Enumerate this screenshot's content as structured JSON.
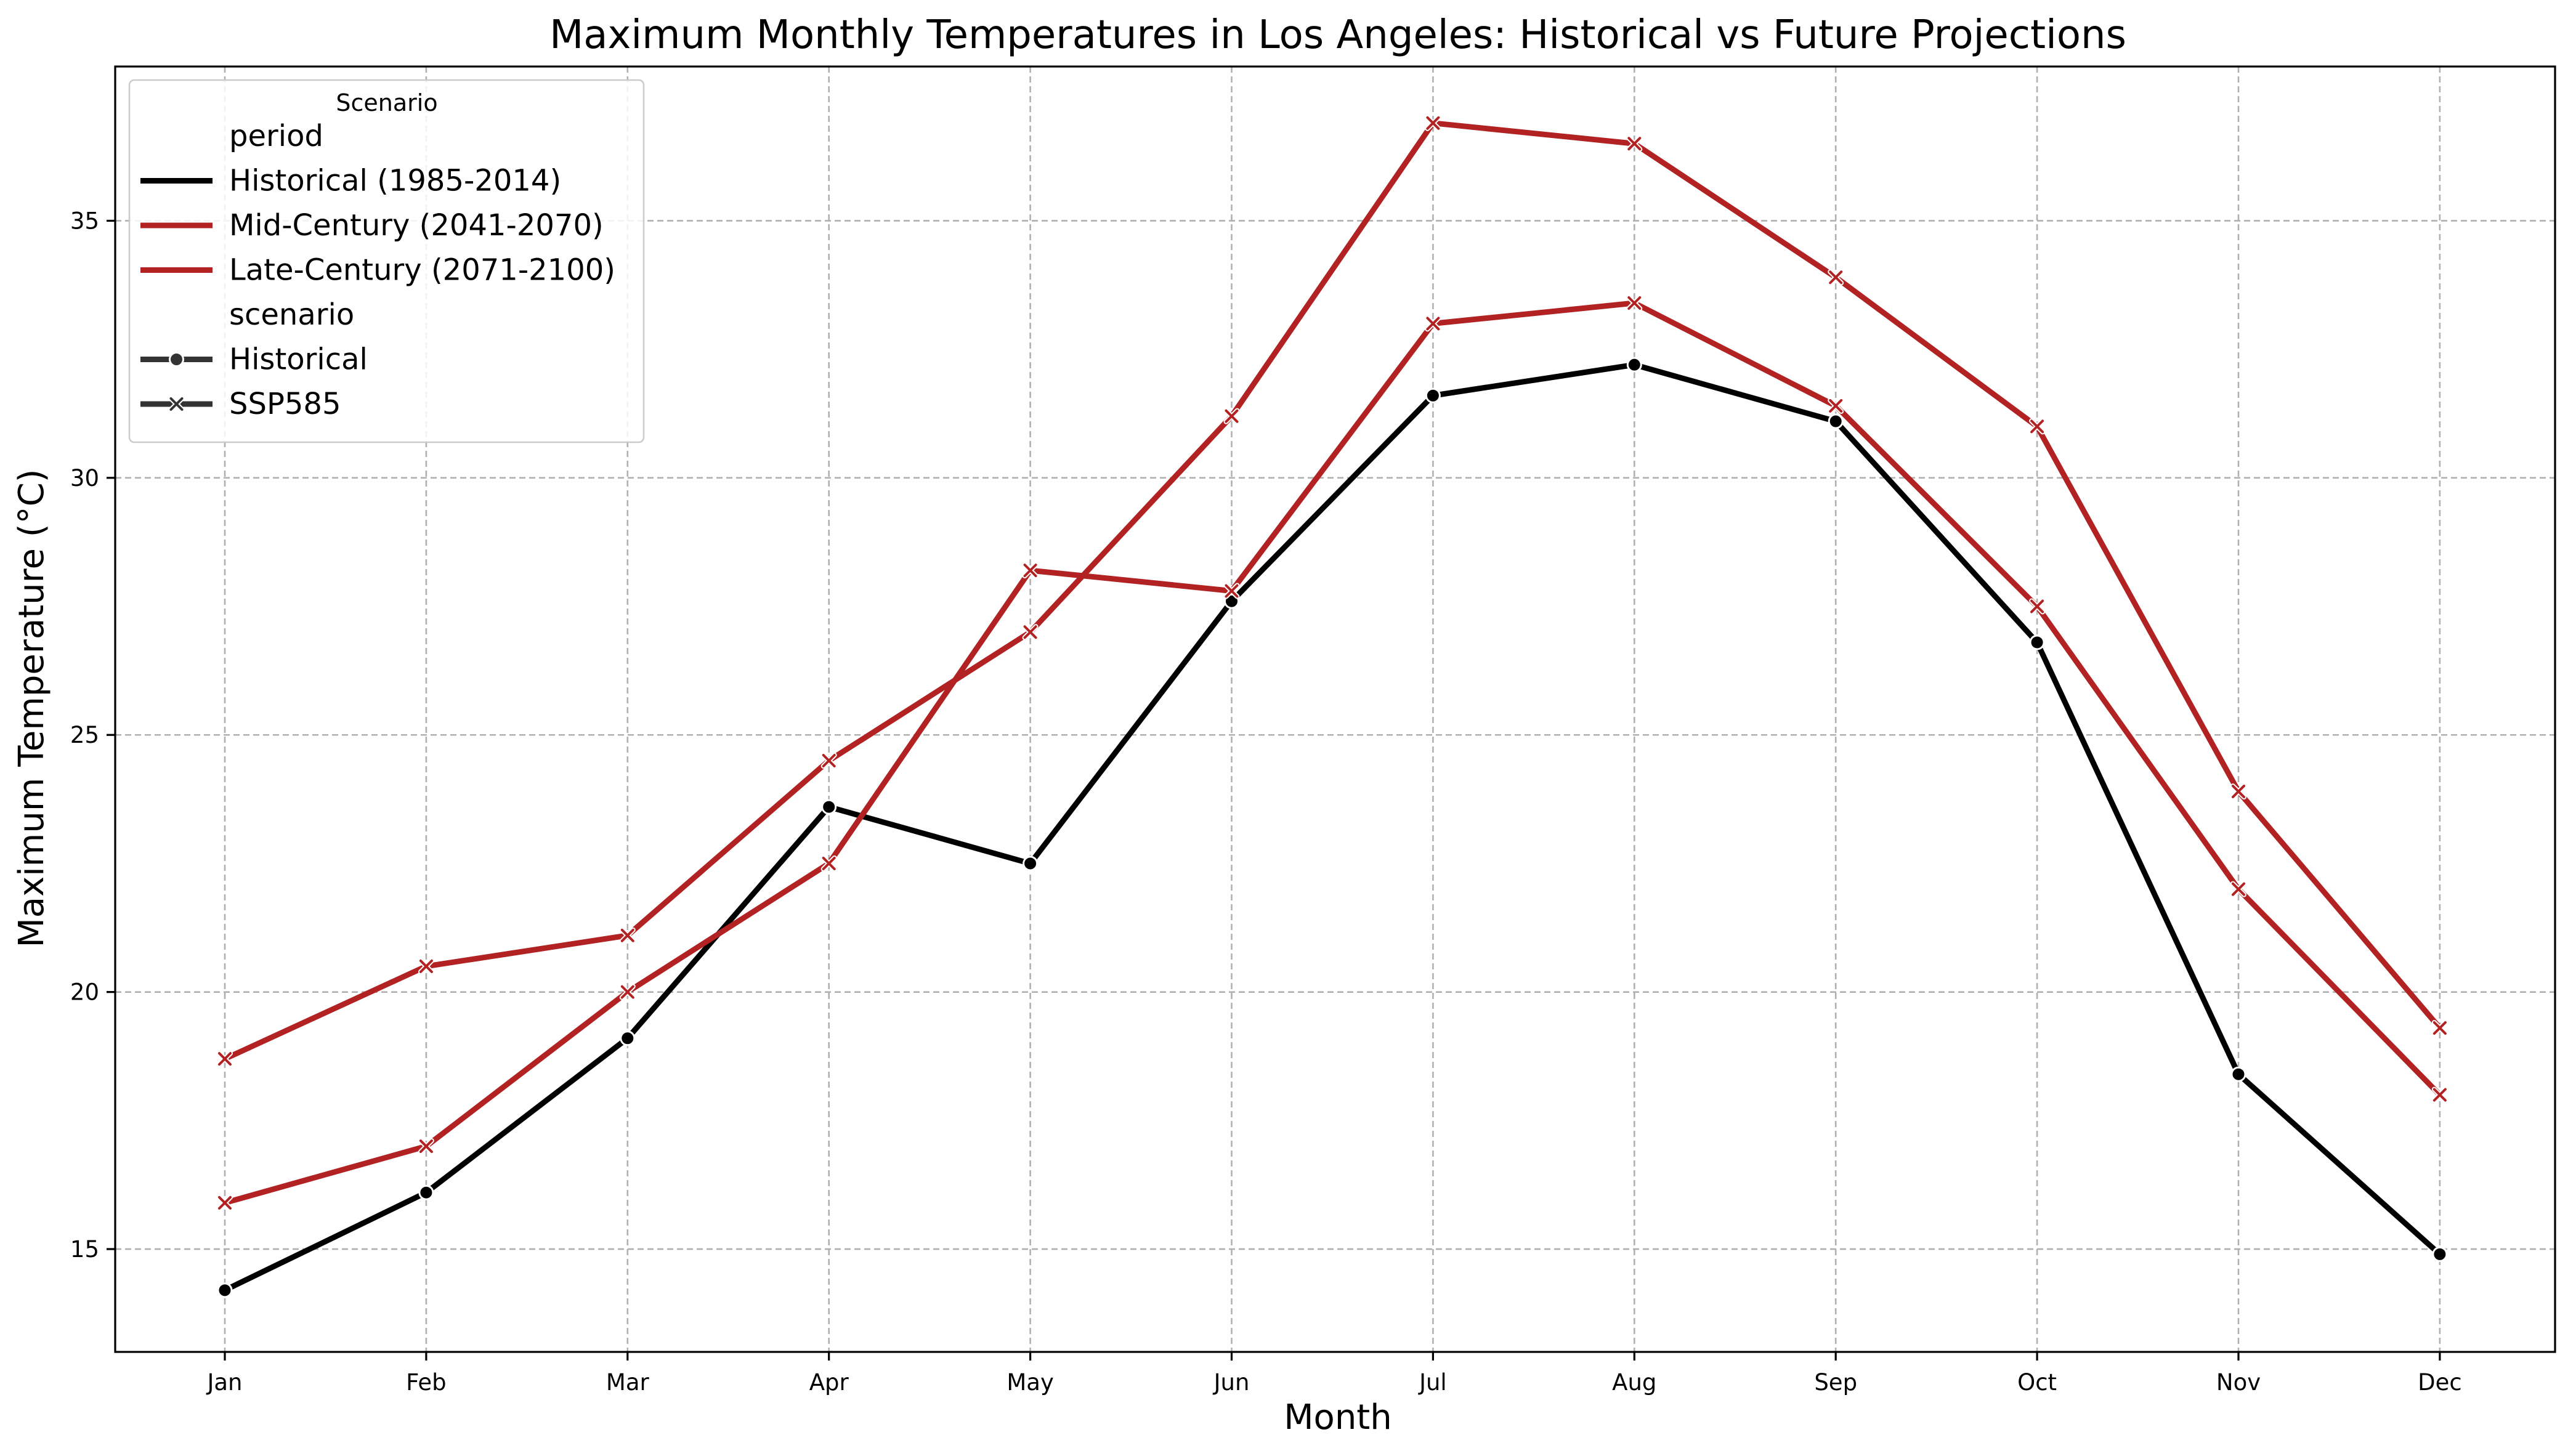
{
  "chart_data": {
    "type": "line",
    "title": "Maximum Monthly Temperatures in Los Angeles: Historical vs Future Projections",
    "xlabel": "Month",
    "ylabel": "Maximum Temperature (°C)",
    "categories": [
      "Jan",
      "Feb",
      "Mar",
      "Apr",
      "May",
      "Jun",
      "Jul",
      "Aug",
      "Sep",
      "Oct",
      "Nov",
      "Dec"
    ],
    "ylim": [
      13,
      38
    ],
    "yticks": [
      15,
      20,
      25,
      30,
      35
    ],
    "grid": true,
    "legend": {
      "placement": "top-left",
      "title": "Scenario",
      "entries": [
        {
          "label": "period",
          "kind": "header"
        },
        {
          "label": "Historical (1985-2014)",
          "kind": "line",
          "color": "#000000"
        },
        {
          "label": "Mid-Century (2041-2070)",
          "kind": "line",
          "color": "#b22222"
        },
        {
          "label": "Late-Century (2071-2100)",
          "kind": "line",
          "color": "#b22222"
        },
        {
          "label": "scenario",
          "kind": "header"
        },
        {
          "label": "Historical",
          "kind": "marker",
          "marker": "circle",
          "color": "#333333"
        },
        {
          "label": "SSP585",
          "kind": "marker",
          "marker": "x",
          "color": "#333333"
        }
      ]
    },
    "series": [
      {
        "name": "Historical (1985-2014)",
        "scenario": "Historical",
        "color": "#000000",
        "marker": "circle",
        "values": [
          14.2,
          16.1,
          19.1,
          23.6,
          22.5,
          27.6,
          31.6,
          32.2,
          31.1,
          26.8,
          18.4,
          14.9
        ]
      },
      {
        "name": "Mid-Century (2041-2070)",
        "scenario": "SSP585",
        "color": "#b22222",
        "marker": "x",
        "values": [
          15.9,
          17.0,
          20.0,
          22.5,
          28.2,
          27.8,
          33.0,
          33.4,
          31.4,
          27.5,
          22.0,
          18.0
        ]
      },
      {
        "name": "Late-Century (2071-2100)",
        "scenario": "SSP585",
        "color": "#b22222",
        "marker": "x",
        "values": [
          18.7,
          20.5,
          21.1,
          24.5,
          27.0,
          31.2,
          36.9,
          36.5,
          33.9,
          31.0,
          23.9,
          19.3
        ]
      }
    ]
  }
}
